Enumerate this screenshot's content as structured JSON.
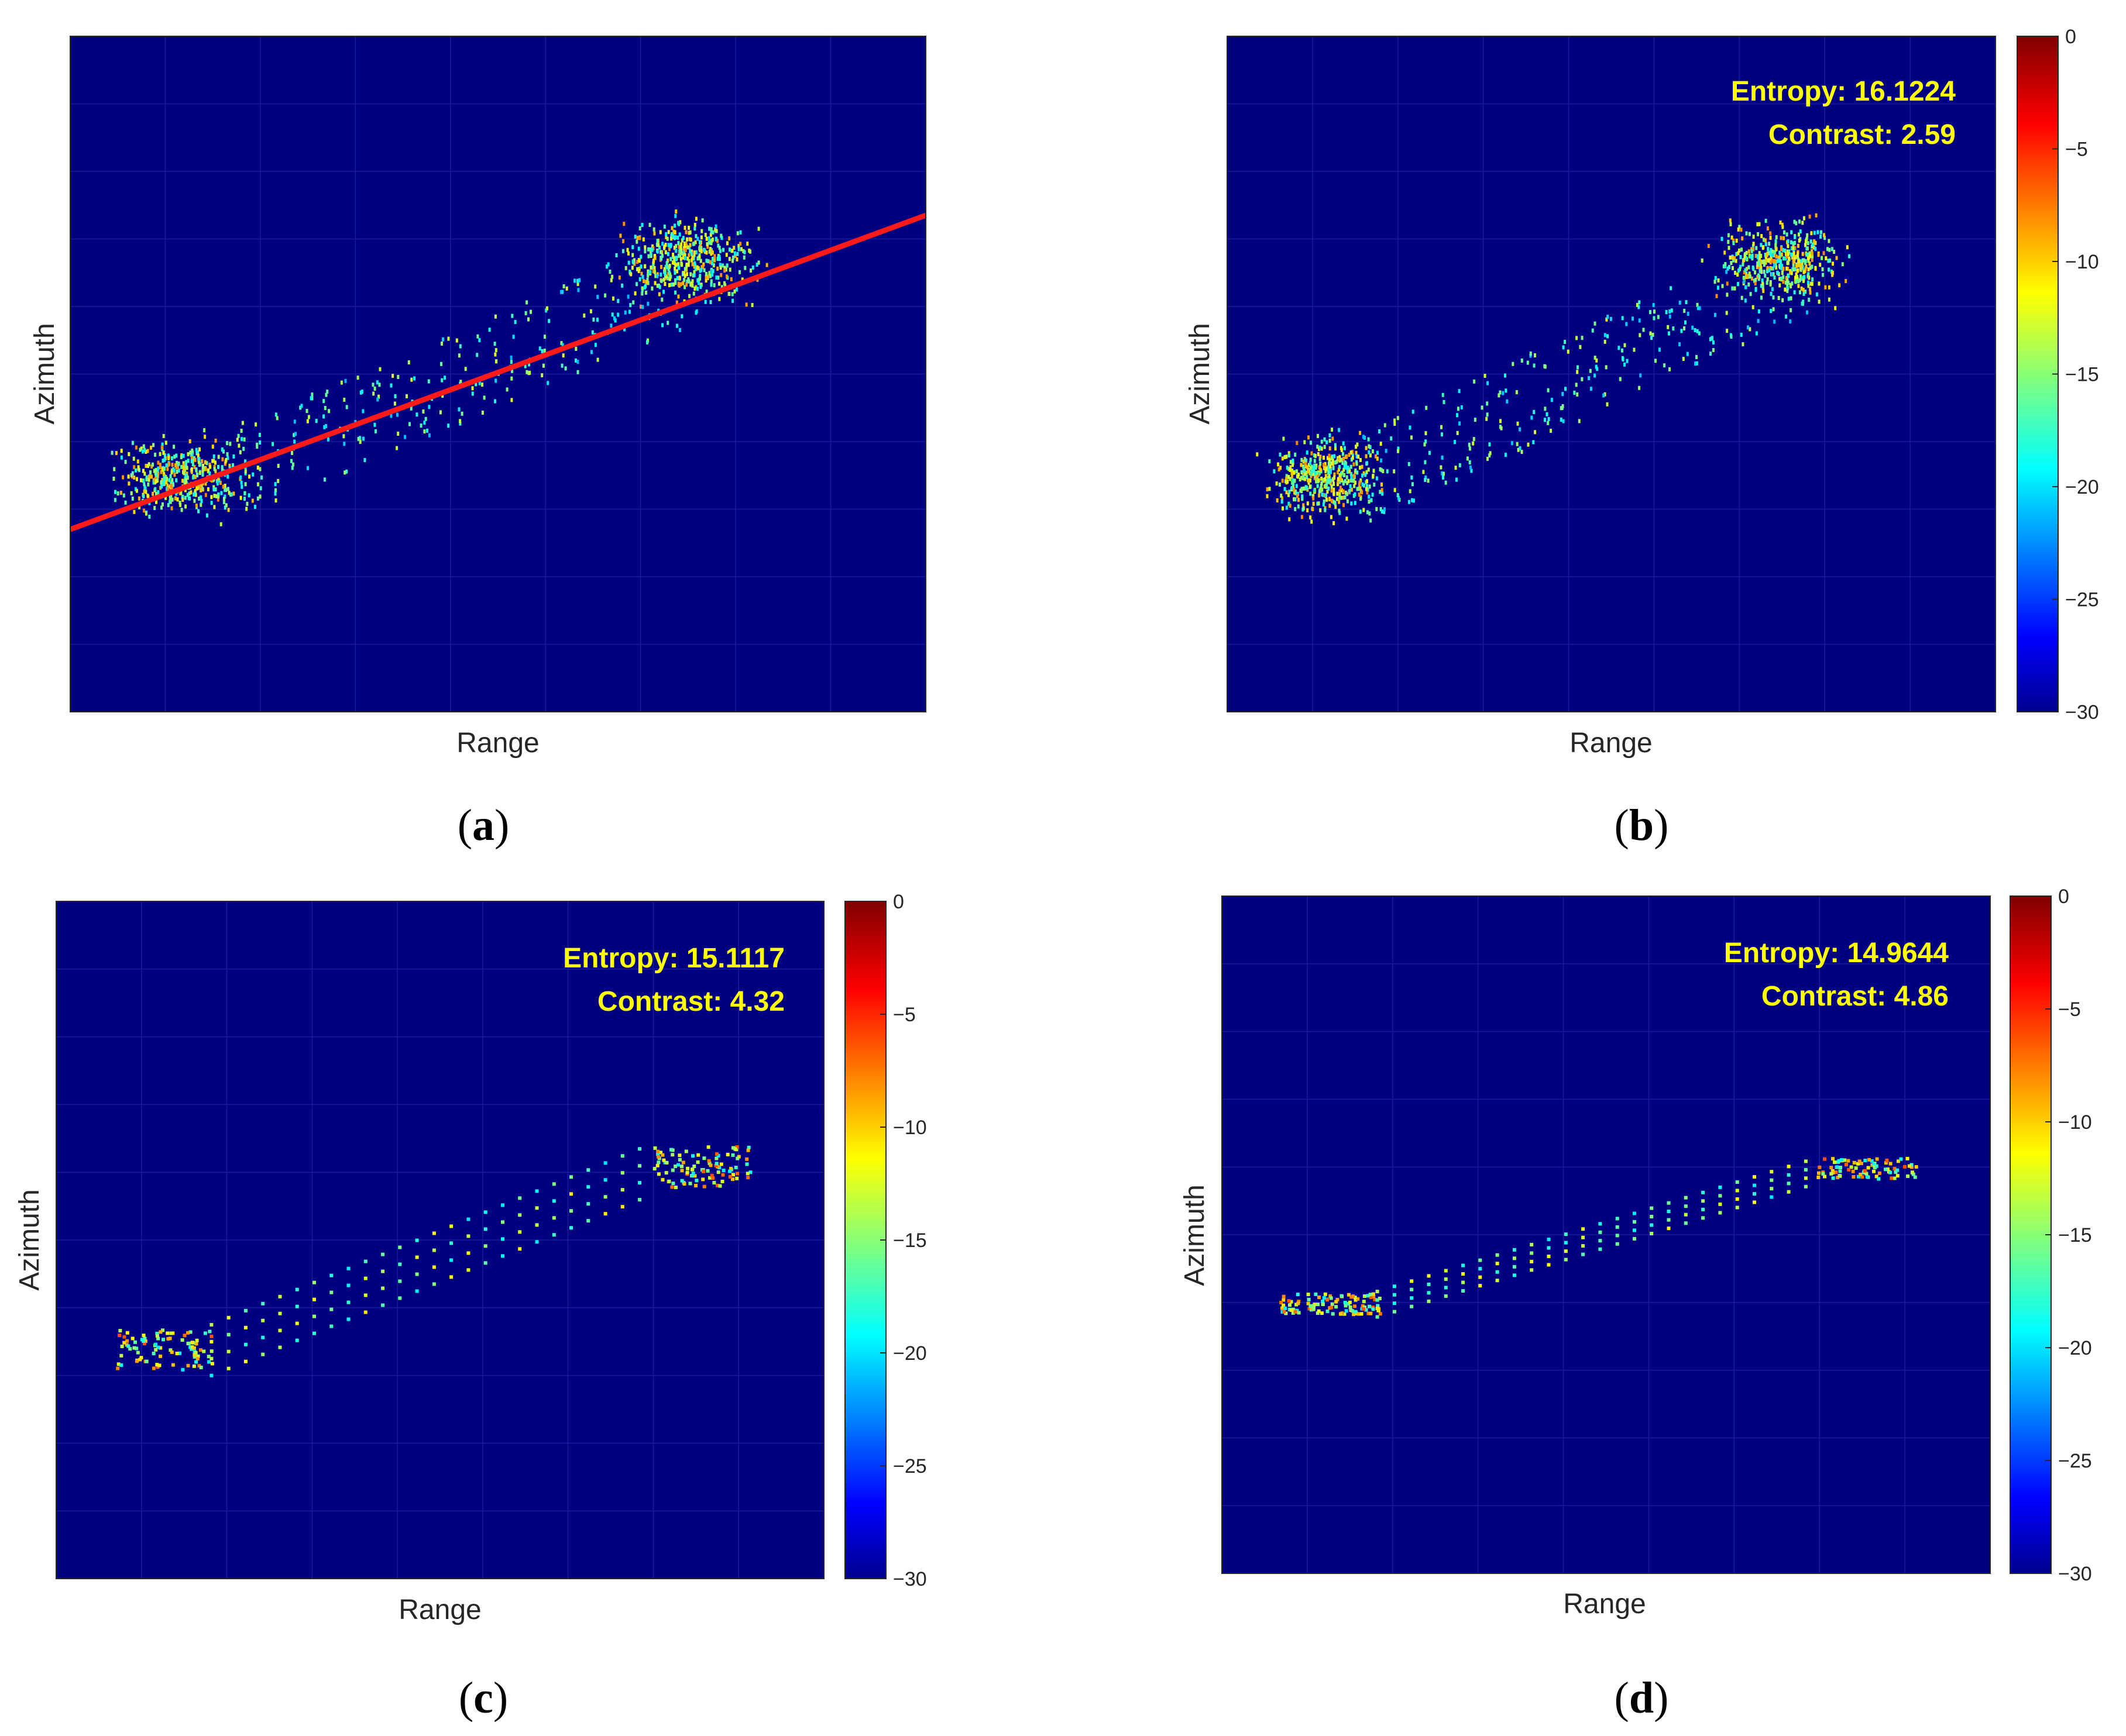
{
  "colors": {
    "background": "#000080",
    "trajectory": "#ff1a1a",
    "metric_text": "#ffff00",
    "colormap": [
      "#00008f",
      "#0000ff",
      "#00ffff",
      "#ffff00",
      "#ff0000",
      "#800000"
    ]
  },
  "chart_data": [
    {
      "id": "a",
      "type": "heatmap",
      "panel_label": "a",
      "xlabel": "Range",
      "ylabel": "Azimuth",
      "colorbar": null,
      "entropy_text": "",
      "contrast_text": "",
      "description_free": true,
      "line": {
        "from": [
          0.0,
          0.27
        ],
        "to": [
          1.0,
          0.735
        ]
      },
      "scene": "blurred",
      "grid": true
    },
    {
      "id": "b",
      "type": "heatmap",
      "panel_label": "b",
      "xlabel": "Range",
      "ylabel": "Azimuth",
      "colorbar": {
        "min": -30,
        "max": 0,
        "ticks": [
          0,
          -5,
          -10,
          -15,
          -20,
          -25,
          -30
        ]
      },
      "entropy_text": "Entropy: 16.1224",
      "contrast_text": "Contrast: 2.59",
      "entropy": 16.1224,
      "contrast": 2.59,
      "scene": "blurred",
      "grid": true
    },
    {
      "id": "c",
      "type": "heatmap",
      "panel_label": "c",
      "xlabel": "Range",
      "ylabel": "Azimuth",
      "colorbar": {
        "min": -30,
        "max": 0,
        "ticks": [
          0,
          -5,
          -10,
          -15,
          -20,
          -25,
          -30
        ]
      },
      "entropy_text": "Entropy: 15.1117",
      "contrast_text": "Contrast: 4.32",
      "entropy": 15.1117,
      "contrast": 4.32,
      "scene": "focused",
      "grid": true
    },
    {
      "id": "d",
      "type": "heatmap",
      "panel_label": "d",
      "xlabel": "Range",
      "ylabel": "Azimuth",
      "colorbar": {
        "min": -30,
        "max": 0,
        "ticks": [
          0,
          -5,
          -10,
          -15,
          -20,
          -25,
          -30
        ]
      },
      "entropy_text": "Entropy: 14.9644",
      "contrast_text": "Contrast: 4.86",
      "entropy": 14.9644,
      "contrast": 4.86,
      "scene": "sharp",
      "grid": true
    }
  ]
}
